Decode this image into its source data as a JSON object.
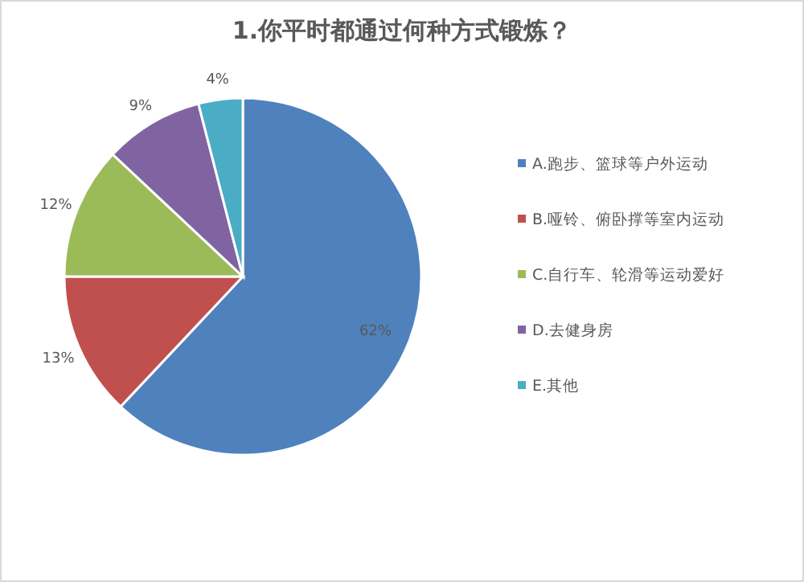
{
  "chart_data": {
    "type": "pie",
    "title": "1.你平时都通过何种方式锻炼？",
    "categories": [
      "A.跑步、篮球等户外运动",
      "B.哑铃、俯卧撑等室内运动",
      "C.自行车、轮滑等运动爱好",
      "D.去健身房",
      "E.其他"
    ],
    "values": [
      62,
      13,
      12,
      9,
      4
    ],
    "colors": [
      "#4f81bd",
      "#c0504d",
      "#9bbb59",
      "#8064a2",
      "#4bacc6"
    ],
    "value_labels": [
      "62%",
      "13%",
      "12%",
      "9%",
      "4%"
    ],
    "legend": "right"
  }
}
